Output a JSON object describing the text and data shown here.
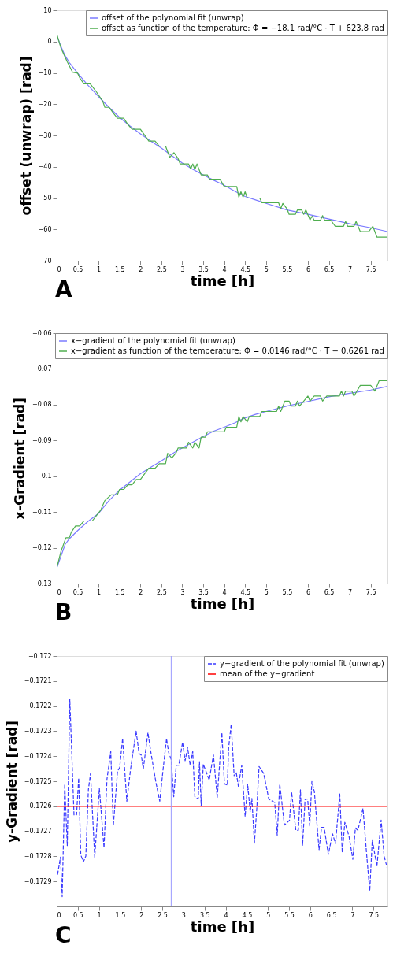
{
  "chart_data": [
    {
      "type": "line",
      "xlabel": "time [h]",
      "ylabel": "offset (unwrap) [rad]",
      "xlim": [
        0,
        7.9
      ],
      "xticks": [
        0,
        0.5,
        1,
        1.5,
        2,
        2.5,
        3,
        3.5,
        4,
        4.5,
        5,
        5.5,
        6,
        6.5,
        7,
        7.5
      ],
      "ylim": [
        -70,
        10
      ],
      "yticks": [
        -70,
        -60,
        -50,
        -40,
        -30,
        -20,
        -10,
        0,
        10
      ],
      "legend": "top right",
      "annotations": [
        "A"
      ],
      "line_style": "solid",
      "series": [
        {
          "name": "offset of the polynomial fit (unwrap)",
          "color": "#7b7bff",
          "x": [
            0,
            0.1,
            0.2,
            0.3,
            0.5,
            0.75,
            1,
            1.25,
            1.5,
            1.75,
            2,
            2.25,
            2.5,
            2.75,
            3,
            3.25,
            3.5,
            3.75,
            4,
            4.25,
            4.5,
            4.75,
            5,
            5.5,
            6,
            6.5,
            7,
            7.5,
            7.9
          ],
          "values": [
            2,
            -1.5,
            -4.5,
            -6.7,
            -10.1,
            -14,
            -17.6,
            -21,
            -24.2,
            -27,
            -29.5,
            -31.8,
            -34,
            -36.5,
            -38.8,
            -40.8,
            -42.6,
            -44.3,
            -45.9,
            -47.8,
            -49.5,
            -50.6,
            -51.7,
            -53.8,
            -55.2,
            -56.7,
            -58.2,
            -59.5,
            -60.7
          ]
        },
        {
          "name": "offset as function of the temperature: Φ = −18.1 rad/°C · T + 623.8 rad",
          "color": "#4fae4f",
          "x": [
            0,
            0.1,
            0.25,
            0.38,
            0.5,
            0.55,
            0.65,
            0.8,
            0.95,
            1.1,
            1.15,
            1.25,
            1.35,
            1.45,
            1.6,
            1.7,
            1.8,
            2.0,
            2.1,
            2.2,
            2.35,
            2.45,
            2.6,
            2.7,
            2.8,
            2.9,
            2.95,
            3.15,
            3.2,
            3.25,
            3.3,
            3.35,
            3.45,
            3.6,
            3.65,
            3.9,
            4.0,
            4.3,
            4.35,
            4.4,
            4.45,
            4.5,
            4.55,
            4.85,
            4.9,
            5.3,
            5.35,
            5.4,
            5.5,
            5.55,
            5.7,
            5.75,
            5.85,
            5.9,
            5.95,
            6.05,
            6.1,
            6.15,
            6.3,
            6.35,
            6.4,
            6.55,
            6.65,
            6.85,
            6.9,
            6.95,
            7.1,
            7.15,
            7.25,
            7.45,
            7.55,
            7.65,
            7.9
          ],
          "values": [
            2.5,
            -2,
            -6.4,
            -9.8,
            -10.1,
            -11.6,
            -13.5,
            -13.5,
            -16.1,
            -19.1,
            -21,
            -21,
            -22.8,
            -24.5,
            -24.5,
            -26.5,
            -28,
            -28,
            -29.9,
            -31.8,
            -31.8,
            -33.4,
            -33.4,
            -37,
            -35.5,
            -37.4,
            -39.1,
            -39.1,
            -40.7,
            -39.1,
            -40.9,
            -39.1,
            -42.6,
            -42.6,
            -44,
            -44,
            -46.3,
            -46.3,
            -49.7,
            -48,
            -49.7,
            -48,
            -50,
            -50,
            -51.5,
            -51.5,
            -53.4,
            -51.7,
            -53.4,
            -55.2,
            -55.2,
            -53.8,
            -53.8,
            -55.2,
            -53.8,
            -57,
            -55.8,
            -57.1,
            -57.1,
            -55.6,
            -57.1,
            -57.1,
            -59,
            -59,
            -57.5,
            -59,
            -59,
            -57.5,
            -60.7,
            -60.7,
            -59,
            -62.5,
            -62.5
          ]
        }
      ]
    },
    {
      "type": "line",
      "xlabel": "time [h]",
      "ylabel": "x-Gradient [rad]",
      "xlim": [
        0,
        7.9
      ],
      "xticks": [
        0,
        0.5,
        1,
        1.5,
        2,
        2.5,
        3,
        3.5,
        4,
        4.5,
        5,
        5.5,
        6,
        6.5,
        7,
        7.5
      ],
      "ylim": [
        -0.13,
        -0.06
      ],
      "yticks": [
        -0.13,
        -0.12,
        -0.11,
        -0.1,
        -0.09,
        -0.08,
        -0.07,
        -0.06
      ],
      "legend": "top right",
      "annotations": [
        "B"
      ],
      "line_style": "solid",
      "series": [
        {
          "name": "x−gradient of the polynomial fit (unwrap)",
          "color": "#7b7bff",
          "x": [
            0,
            0.1,
            0.2,
            0.3,
            0.5,
            0.75,
            1,
            1.25,
            1.5,
            1.75,
            2,
            2.25,
            2.5,
            2.75,
            3,
            3.25,
            3.5,
            3.75,
            4,
            4.25,
            4.5,
            4.75,
            5,
            5.5,
            6,
            6.5,
            7,
            7.5,
            7.9
          ],
          "values": [
            -0.1257,
            -0.1224,
            -0.1191,
            -0.1175,
            -0.1152,
            -0.1126,
            -0.1104,
            -0.1068,
            -0.1039,
            -0.1016,
            -0.0993,
            -0.0975,
            -0.0957,
            -0.0938,
            -0.0921,
            -0.0905,
            -0.0889,
            -0.0874,
            -0.0863,
            -0.0851,
            -0.0837,
            -0.0827,
            -0.0819,
            -0.0804,
            -0.0791,
            -0.0778,
            -0.0768,
            -0.0759,
            -0.0749
          ]
        },
        {
          "name": "x−gradient as function of the temperature: Φ = 0.0146 rad/°C · T − 0.6261 rad",
          "color": "#4fae4f",
          "x": [
            0,
            0.1,
            0.22,
            0.3,
            0.35,
            0.45,
            0.55,
            0.65,
            0.85,
            0.95,
            1.05,
            1.15,
            1.3,
            1.45,
            1.5,
            1.6,
            1.7,
            1.8,
            1.9,
            2.0,
            2.1,
            2.2,
            2.35,
            2.45,
            2.6,
            2.65,
            2.75,
            2.85,
            2.9,
            3.1,
            3.15,
            3.25,
            3.3,
            3.4,
            3.45,
            3.55,
            3.6,
            4.0,
            4.05,
            4.3,
            4.35,
            4.4,
            4.45,
            4.55,
            4.6,
            4.85,
            4.9,
            5.25,
            5.3,
            5.35,
            5.45,
            5.55,
            5.6,
            5.7,
            5.75,
            5.8,
            5.9,
            6.0,
            6.05,
            6.15,
            6.3,
            6.35,
            6.45,
            6.75,
            6.8,
            6.85,
            6.9,
            7.05,
            7.1,
            7.25,
            7.5,
            7.6,
            7.7,
            7.9
          ],
          "values": [
            -0.1257,
            -0.1211,
            -0.1172,
            -0.1172,
            -0.1156,
            -0.1139,
            -0.1139,
            -0.1125,
            -0.1125,
            -0.111,
            -0.1095,
            -0.1068,
            -0.1052,
            -0.1052,
            -0.1037,
            -0.1037,
            -0.1024,
            -0.1024,
            -0.1009,
            -0.1009,
            -0.0993,
            -0.0978,
            -0.0978,
            -0.0965,
            -0.0965,
            -0.0936,
            -0.0949,
            -0.0935,
            -0.0921,
            -0.0921,
            -0.0905,
            -0.0921,
            -0.0905,
            -0.0921,
            -0.0891,
            -0.0891,
            -0.0876,
            -0.0876,
            -0.0863,
            -0.0863,
            -0.0833,
            -0.0848,
            -0.0833,
            -0.0848,
            -0.0833,
            -0.0833,
            -0.0819,
            -0.0819,
            -0.0804,
            -0.0819,
            -0.079,
            -0.079,
            -0.0804,
            -0.0804,
            -0.079,
            -0.0804,
            -0.079,
            -0.0776,
            -0.079,
            -0.0776,
            -0.0776,
            -0.079,
            -0.0776,
            -0.0776,
            -0.0762,
            -0.0776,
            -0.0762,
            -0.0762,
            -0.0776,
            -0.0746,
            -0.0746,
            -0.0762,
            -0.0733,
            -0.0733
          ]
        }
      ]
    },
    {
      "type": "line",
      "xlabel": "time [h]",
      "ylabel": "y-Gradient [rad]",
      "xlim": [
        0,
        7.83
      ],
      "xticks": [
        0,
        0.5,
        1,
        1.5,
        2,
        2.5,
        3,
        3.5,
        4,
        4.5,
        5,
        5.5,
        6,
        6.5,
        7,
        7.5
      ],
      "ylim": [
        -0.173,
        -0.172
      ],
      "yticks": [
        -0.1729,
        -0.1728,
        -0.1727,
        -0.1726,
        -0.1725,
        -0.1724,
        -0.1723,
        -0.1722,
        -0.1721,
        -0.172
      ],
      "legend": "top right",
      "annotations": [
        "C"
      ],
      "ref_lines": [
        {
          "axis": "x",
          "value": 2.71,
          "color": "#9a9aff"
        }
      ],
      "series": [
        {
          "name": "y−gradient of the polynomial fit (unwrap)",
          "color": "#3a3aff",
          "line_style": "dashed",
          "x": [
            0.02,
            0.09,
            0.13,
            0.19,
            0.25,
            0.31,
            0.41,
            0.47,
            0.52,
            0.57,
            0.63,
            0.69,
            0.75,
            0.8,
            0.9,
            1.01,
            1.12,
            1.19,
            1.28,
            1.34,
            1.44,
            1.49,
            1.56,
            1.66,
            1.75,
            1.88,
            1.95,
            2.0,
            2.05,
            2.16,
            2.23,
            2.35,
            2.44,
            2.52,
            2.6,
            2.65,
            2.71,
            2.77,
            2.83,
            2.89,
            2.98,
            3.04,
            3.1,
            3.16,
            3.22,
            3.27,
            3.35,
            3.38,
            3.42,
            3.47,
            3.61,
            3.71,
            3.8,
            3.91,
            3.97,
            4.04,
            4.07,
            4.13,
            4.2,
            4.25,
            4.3,
            4.38,
            4.46,
            4.52,
            4.58,
            4.62,
            4.68,
            4.74,
            4.79,
            4.9,
            5.02,
            5.16,
            5.22,
            5.28,
            5.39,
            5.51,
            5.56,
            5.66,
            5.72,
            5.77,
            5.82,
            5.88,
            5.94,
            5.99,
            6.04,
            6.1,
            6.21,
            6.27,
            6.33,
            6.43,
            6.53,
            6.6,
            6.7,
            6.76,
            6.82,
            6.92,
            7.01,
            7.07,
            7.13,
            7.25,
            7.34,
            7.41,
            7.47,
            7.58,
            7.68,
            7.75,
            7.83
          ],
          "values": [
            -0.172873,
            -0.172803,
            -0.172961,
            -0.172511,
            -0.172757,
            -0.172172,
            -0.172636,
            -0.172634,
            -0.172487,
            -0.172794,
            -0.172822,
            -0.172799,
            -0.172534,
            -0.172469,
            -0.172803,
            -0.172529,
            -0.172766,
            -0.172492,
            -0.172381,
            -0.172678,
            -0.17246,
            -0.172446,
            -0.17233,
            -0.17258,
            -0.17245,
            -0.1723,
            -0.17239,
            -0.172395,
            -0.17245,
            -0.172306,
            -0.172385,
            -0.172506,
            -0.17258,
            -0.17245,
            -0.17233,
            -0.172385,
            -0.172413,
            -0.172562,
            -0.172436,
            -0.172436,
            -0.172344,
            -0.172418,
            -0.172367,
            -0.172436,
            -0.172381,
            -0.172562,
            -0.172571,
            -0.172422,
            -0.172599,
            -0.172432,
            -0.172495,
            -0.172395,
            -0.172564,
            -0.172306,
            -0.172511,
            -0.172515,
            -0.172367,
            -0.172272,
            -0.172478,
            -0.172464,
            -0.17252,
            -0.172436,
            -0.172641,
            -0.172511,
            -0.172622,
            -0.172569,
            -0.172747,
            -0.172599,
            -0.172441,
            -0.172469,
            -0.172571,
            -0.172585,
            -0.172715,
            -0.172511,
            -0.172675,
            -0.172656,
            -0.172543,
            -0.172696,
            -0.172696,
            -0.172534,
            -0.172757,
            -0.172571,
            -0.172571,
            -0.172678,
            -0.172501,
            -0.172543,
            -0.172773,
            -0.172684,
            -0.172684,
            -0.172792,
            -0.17271,
            -0.172749,
            -0.172551,
            -0.172786,
            -0.172664,
            -0.17272,
            -0.172812,
            -0.172687,
            -0.172696,
            -0.172608,
            -0.172799,
            -0.172938,
            -0.172734,
            -0.17284,
            -0.172655,
            -0.172799,
            -0.17285
          ]
        },
        {
          "name": "mean of the y−gradient",
          "color": "#ff0000",
          "line_style": "solid",
          "x": [
            0,
            7.83
          ],
          "values": [
            -0.1726,
            -0.1726
          ]
        }
      ]
    }
  ]
}
